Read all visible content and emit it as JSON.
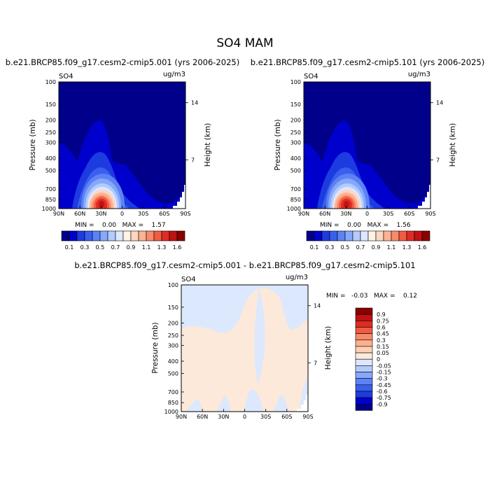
{
  "title": "SO4 MAM",
  "color_levels": {
    "seq": [
      "#00008b",
      "#0000cd",
      "#1c3ce0",
      "#3a5fee",
      "#5c82f5",
      "#86a8fa",
      "#b3cbfc",
      "#dce8fd",
      "#fff2e6",
      "#fdd5c0",
      "#fcb294",
      "#f88b6a",
      "#f25b43",
      "#e02b24",
      "#bf1212",
      "#8b0000"
    ],
    "div": [
      "#00008b",
      "#0000cd",
      "#1c3ce0",
      "#3a5fee",
      "#5c82f5",
      "#86a8fa",
      "#b3cbfc",
      "#dce8fd",
      "#fde9da",
      "#fdd0b5",
      "#fbb18f",
      "#f88b6a",
      "#f25b43",
      "#e02b24",
      "#bf1212",
      "#8b0000"
    ]
  },
  "panels": [
    {
      "id": "p1",
      "subtitle": "b.e21.BRCP85.f09_g17.cesm2-cmip5.001 (yrs 2006-2025)",
      "var_label": "SO4",
      "units": "ug/m3",
      "stats": "MIN =    0.00   MAX =    1.57",
      "y_title": "Pressure (mb)",
      "y2_title": "Height (km)"
    },
    {
      "id": "p2",
      "subtitle": "b.e21.BRCP85.f09_g17.cesm2-cmip5.101 (yrs 2006-2025)",
      "var_label": "SO4",
      "units": "ug/m3",
      "stats": "MIN =    0.00   MAX =    1.56",
      "y_title": "Pressure (mb)",
      "y2_title": "Height (km)"
    },
    {
      "id": "p3",
      "subtitle": "b.e21.BRCP85.f09_g17.cesm2-cmip5.001 - b.e21.BRCP85.f09_g17.cesm2-cmip5.101",
      "var_label": "SO4",
      "units": "ug/m3",
      "stats": "MIN =   -0.03   MAX =    0.12",
      "y_title": "Pressure (mb)",
      "y2_title": "Height (km)"
    }
  ],
  "chart_data": [
    {
      "type": "heatmap",
      "panel": "p1",
      "x_tick_labels": [
        "90N",
        "60N",
        "30N",
        "0",
        "30S",
        "60S",
        "90S"
      ],
      "x_ticks_deg": [
        90,
        60,
        30,
        0,
        -30,
        -60,
        -90
      ],
      "y_tick_labels": [
        "100",
        "150",
        "200",
        "250",
        "300",
        "400",
        "500",
        "700",
        "850",
        "1000"
      ],
      "y_ticks_mb": [
        100,
        150,
        200,
        250,
        300,
        400,
        500,
        700,
        850,
        1000
      ],
      "y_scale": "log",
      "ylim_mb": [
        1000,
        100
      ],
      "y2_tick_labels": [
        "14",
        "7"
      ],
      "y2_ticks_mb": [
        146,
        412
      ],
      "data_min": 0.0,
      "data_max": 1.57,
      "peak": {
        "lat": 33,
        "pressure_mb": 930,
        "value": 1.57
      },
      "colorbar_labels": [
        "0.1",
        "0.3",
        "0.5",
        "0.7",
        "0.9",
        "1.1",
        "1.3",
        "1.6"
      ]
    },
    {
      "type": "heatmap",
      "panel": "p2",
      "x_tick_labels": [
        "90N",
        "60N",
        "30N",
        "0",
        "30S",
        "60S",
        "90S"
      ],
      "x_ticks_deg": [
        90,
        60,
        30,
        0,
        -30,
        -60,
        -90
      ],
      "y_tick_labels": [
        "100",
        "150",
        "200",
        "250",
        "300",
        "400",
        "500",
        "700",
        "850",
        "1000"
      ],
      "y_ticks_mb": [
        100,
        150,
        200,
        250,
        300,
        400,
        500,
        700,
        850,
        1000
      ],
      "y_scale": "log",
      "ylim_mb": [
        1000,
        100
      ],
      "y2_tick_labels": [
        "14",
        "7"
      ],
      "y2_ticks_mb": [
        146,
        412
      ],
      "data_min": 0.0,
      "data_max": 1.56,
      "peak": {
        "lat": 33,
        "pressure_mb": 930,
        "value": 1.56
      },
      "colorbar_labels": [
        "0.1",
        "0.3",
        "0.5",
        "0.7",
        "0.9",
        "1.1",
        "1.3",
        "1.6"
      ]
    },
    {
      "type": "heatmap",
      "panel": "p3",
      "x_tick_labels": [
        "90N",
        "60N",
        "30N",
        "0",
        "30S",
        "60S",
        "90S"
      ],
      "x_ticks_deg": [
        90,
        60,
        30,
        0,
        -30,
        -60,
        -90
      ],
      "y_tick_labels": [
        "100",
        "150",
        "200",
        "250",
        "300",
        "400",
        "500",
        "700",
        "850",
        "1000"
      ],
      "y_ticks_mb": [
        100,
        150,
        200,
        250,
        300,
        400,
        500,
        700,
        850,
        1000
      ],
      "y_scale": "log",
      "ylim_mb": [
        1000,
        100
      ],
      "y2_tick_labels": [
        "14",
        "7"
      ],
      "y2_ticks_mb": [
        146,
        412
      ],
      "data_min": -0.03,
      "data_max": 0.12,
      "colorbar_labels": [
        "0.9",
        "0.75",
        "0.6",
        "0.45",
        "0.3",
        "0.15",
        "0.05",
        "0",
        "-0.05",
        "-0.15",
        "-0.3",
        "-0.45",
        "-0.6",
        "-0.75",
        "-0.9"
      ]
    }
  ]
}
